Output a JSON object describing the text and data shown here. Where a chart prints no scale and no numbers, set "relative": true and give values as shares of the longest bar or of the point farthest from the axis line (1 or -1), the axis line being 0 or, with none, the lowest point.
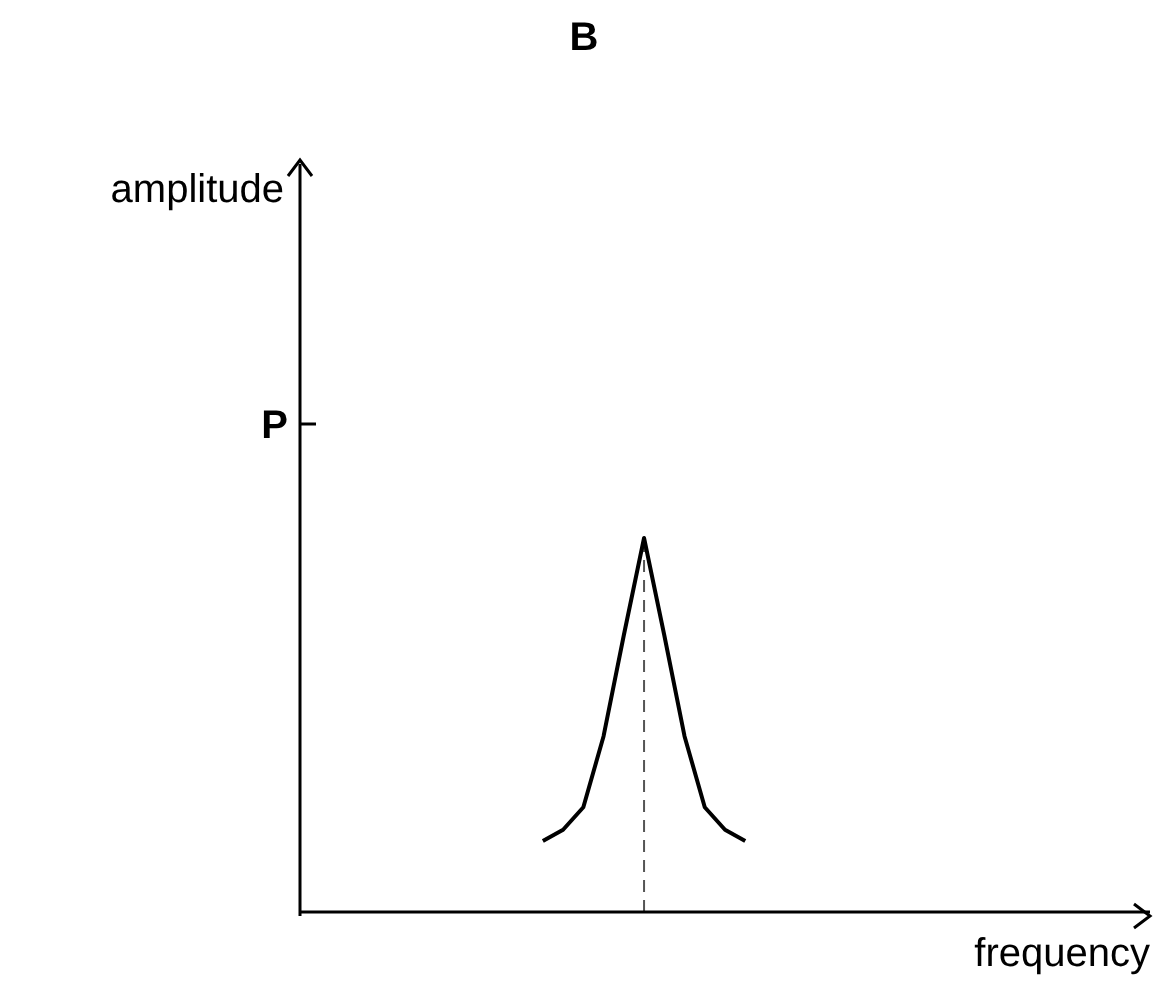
{
  "chart_data": {
    "type": "line",
    "title": "B",
    "xlabel": "frequency",
    "relative": true,
    "categories": [
      null,
      null,
      null,
      null,
      null,
      null,
      null,
      null,
      null,
      null,
      null,
      null,
      null,
      null,
      null,
      null,
      null,
      null,
      null,
      null,
      null,
      null,
      null,
      null,
      null,
      null,
      null,
      null,
      null,
      null,
      null,
      null,
      null,
      null,
      null,
      null,
      null,
      null,
      null,
      null,
      null,
      null,
      null
    ],
    "series": [
      {
        "color": "#000000",
        "values": [
          null,
          null,
          null,
          null,
          null,
          null,
          null,
          null,
          null,
          null,
          null,
          null,
          0.19,
          0.22,
          0.28,
          0.47,
          0.74,
          1,
          0.74,
          0.47,
          0.28,
          0.22,
          0.19,
          null,
          null,
          null,
          null,
          null,
          null,
          null,
          null,
          null,
          null,
          null,
          null,
          null,
          null,
          null,
          null,
          null,
          null,
          null,
          null
        ]
      }
    ],
    "annotations": [
      "amplitude",
      "P"
    ],
    "marker": "none"
  }
}
